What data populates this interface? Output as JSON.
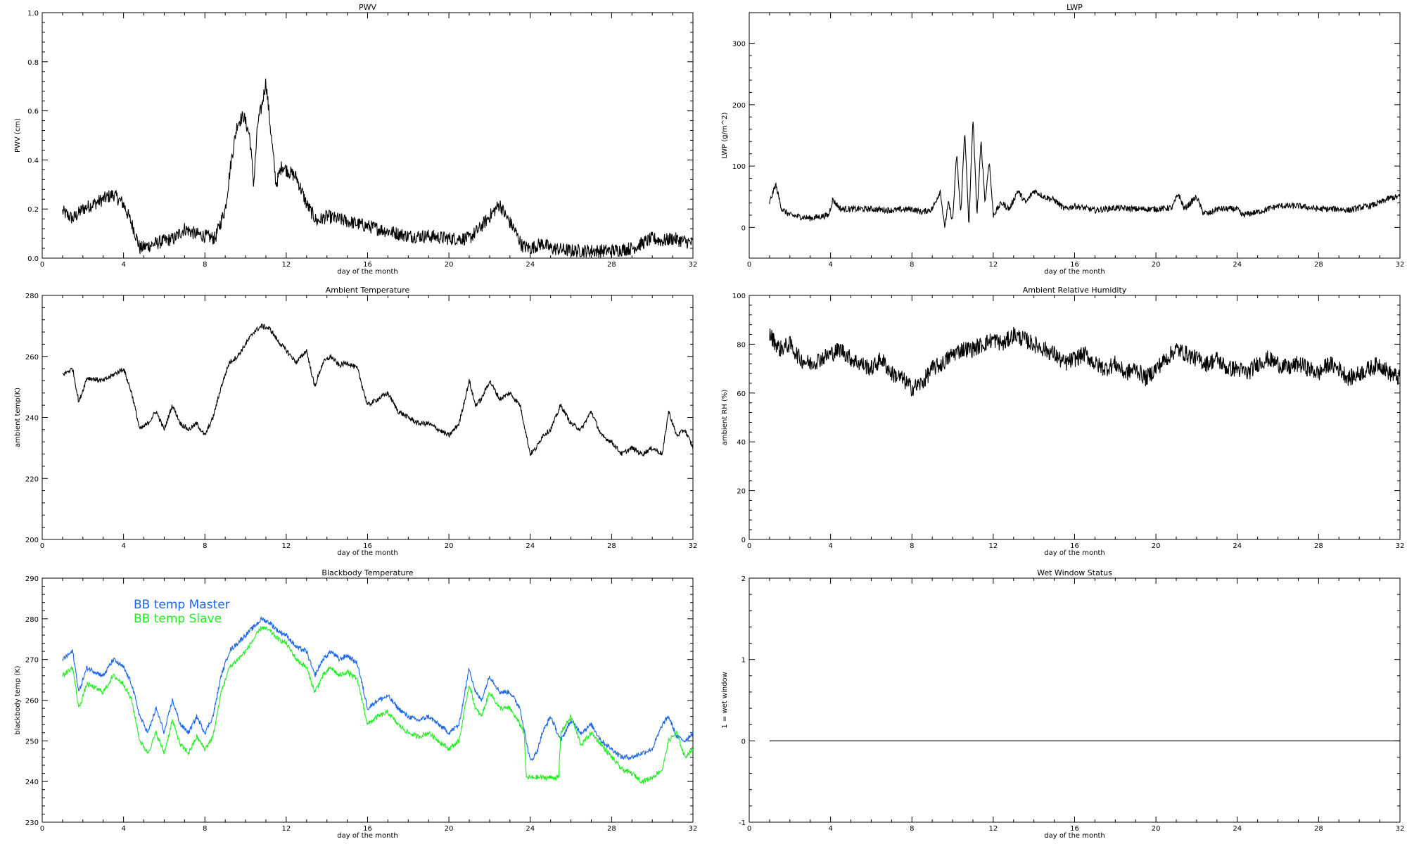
{
  "chart_data": [
    {
      "type": "line",
      "title": "PWV",
      "xlabel": "day of the month",
      "ylabel": "PWV (cm)",
      "xlim": [
        0,
        32
      ],
      "ylim": [
        0,
        1.0
      ],
      "xticks": [
        0,
        4,
        8,
        12,
        16,
        20,
        24,
        28,
        32
      ],
      "yticks": [
        0.0,
        0.2,
        0.4,
        0.6,
        0.8,
        1.0
      ],
      "ytick_labels": [
        "0.0",
        "0.2",
        "0.4",
        "0.6",
        "0.8",
        "1.0"
      ],
      "noise": 0.028,
      "series": [
        {
          "color": "#000000",
          "x": [
            1.0,
            1.5,
            2.0,
            2.5,
            3.0,
            3.5,
            4.0,
            4.5,
            4.8,
            5.2,
            5.6,
            6.0,
            6.5,
            7.0,
            7.5,
            8.0,
            8.5,
            9.0,
            9.3,
            9.6,
            9.9,
            10.2,
            10.4,
            10.6,
            10.8,
            11.0,
            11.2,
            11.5,
            11.8,
            12.0,
            12.5,
            13.0,
            13.5,
            14.0,
            14.5,
            15.0,
            16.0,
            17.0,
            18.0,
            19.0,
            20.0,
            21.0,
            21.5,
            22.0,
            22.5,
            22.8,
            23.2,
            23.6,
            24.0,
            24.3,
            24.6,
            25.0,
            26.0,
            27.0,
            28.0,
            29.0,
            29.5,
            30.0,
            30.5,
            31.0,
            31.5,
            32.0
          ],
          "values": [
            0.19,
            0.16,
            0.2,
            0.22,
            0.24,
            0.26,
            0.22,
            0.12,
            0.04,
            0.05,
            0.06,
            0.07,
            0.08,
            0.12,
            0.1,
            0.09,
            0.08,
            0.2,
            0.4,
            0.55,
            0.58,
            0.5,
            0.3,
            0.55,
            0.62,
            0.72,
            0.55,
            0.3,
            0.38,
            0.36,
            0.33,
            0.22,
            0.15,
            0.17,
            0.16,
            0.15,
            0.13,
            0.11,
            0.09,
            0.09,
            0.08,
            0.08,
            0.12,
            0.17,
            0.22,
            0.17,
            0.12,
            0.05,
            0.04,
            0.05,
            0.06,
            0.04,
            0.03,
            0.03,
            0.03,
            0.04,
            0.06,
            0.08,
            0.07,
            0.08,
            0.07,
            0.06
          ]
        }
      ]
    },
    {
      "type": "line",
      "title": "LWP",
      "xlabel": "day of the month",
      "ylabel": "LWP (g/m^2)",
      "xlim": [
        0,
        32
      ],
      "ylim": [
        -50,
        350
      ],
      "xticks": [
        0,
        4,
        8,
        12,
        16,
        20,
        24,
        28,
        32
      ],
      "yticks": [
        0,
        100,
        200,
        300
      ],
      "ytick_labels": [
        "0",
        "100",
        "200",
        "300"
      ],
      "noise": 5,
      "series": [
        {
          "color": "#000000",
          "x": [
            1.0,
            1.3,
            1.6,
            2.0,
            3.0,
            3.9,
            4.1,
            4.5,
            5.0,
            6.0,
            7.0,
            8.0,
            8.5,
            9.0,
            9.4,
            9.6,
            9.8,
            10.0,
            10.2,
            10.4,
            10.6,
            10.8,
            11.0,
            11.2,
            11.4,
            11.6,
            11.8,
            12.0,
            12.4,
            12.8,
            13.2,
            13.6,
            14.0,
            14.5,
            15.0,
            15.5,
            16.0,
            17.0,
            18.0,
            19.0,
            20.0,
            20.8,
            21.1,
            21.4,
            22.0,
            22.3,
            22.6,
            23.0,
            24.0,
            24.2,
            25.0,
            26.0,
            27.0,
            28.0,
            29.0,
            29.5,
            30.0,
            30.5,
            31.0,
            31.5,
            32.0
          ],
          "values": [
            40,
            70,
            30,
            20,
            15,
            20,
            45,
            30,
            30,
            30,
            28,
            30,
            25,
            30,
            60,
            0,
            40,
            10,
            120,
            20,
            160,
            0,
            180,
            20,
            140,
            40,
            110,
            20,
            40,
            30,
            60,
            40,
            60,
            50,
            45,
            30,
            35,
            28,
            32,
            30,
            30,
            32,
            55,
            30,
            50,
            25,
            22,
            30,
            30,
            20,
            25,
            35,
            35,
            30,
            30,
            28,
            32,
            35,
            40,
            48,
            50
          ]
        }
      ]
    },
    {
      "type": "line",
      "title": "Ambient Temperature",
      "xlabel": "day of the month",
      "ylabel": "ambient temp(K)",
      "xlim": [
        0,
        32
      ],
      "ylim": [
        200,
        280
      ],
      "xticks": [
        0,
        4,
        8,
        12,
        16,
        20,
        24,
        28,
        32
      ],
      "yticks": [
        200,
        220,
        240,
        260,
        280
      ],
      "ytick_labels": [
        "200",
        "220",
        "240",
        "260",
        "280"
      ],
      "noise": 0.8,
      "series": [
        {
          "color": "#000000",
          "x": [
            1.0,
            1.5,
            1.8,
            2.2,
            3.0,
            3.5,
            4.0,
            4.4,
            4.8,
            5.2,
            5.6,
            6.0,
            6.4,
            6.8,
            7.2,
            7.6,
            8.0,
            8.4,
            8.8,
            9.2,
            9.6,
            10.0,
            10.4,
            10.8,
            11.2,
            11.6,
            12.0,
            12.5,
            13.0,
            13.4,
            13.8,
            14.2,
            14.6,
            15.0,
            15.5,
            16.0,
            16.5,
            17.0,
            17.5,
            18.0,
            18.5,
            19.0,
            19.5,
            20.0,
            20.5,
            21.0,
            21.3,
            21.6,
            22.0,
            22.5,
            23.0,
            23.5,
            24.0,
            24.3,
            24.6,
            25.0,
            25.5,
            26.0,
            26.5,
            27.0,
            27.5,
            28.0,
            28.5,
            29.0,
            29.5,
            30.0,
            30.5,
            30.8,
            31.2,
            31.6,
            32.0
          ],
          "values": [
            254,
            256,
            245,
            253,
            252,
            254,
            256,
            248,
            236,
            238,
            242,
            236,
            244,
            238,
            236,
            238,
            234,
            240,
            250,
            258,
            260,
            264,
            268,
            270,
            269,
            265,
            262,
            258,
            262,
            250,
            258,
            260,
            257,
            258,
            256,
            244,
            246,
            248,
            242,
            240,
            238,
            238,
            236,
            234,
            238,
            252,
            244,
            246,
            252,
            246,
            248,
            244,
            228,
            230,
            234,
            236,
            244,
            238,
            236,
            242,
            234,
            232,
            228,
            230,
            228,
            230,
            228,
            242,
            234,
            236,
            230
          ]
        }
      ]
    },
    {
      "type": "line",
      "title": "Ambient Relative Humidity",
      "xlabel": "day of the month",
      "ylabel": "ambient RH (%)",
      "xlim": [
        0,
        32
      ],
      "ylim": [
        0,
        100
      ],
      "xticks": [
        0,
        4,
        8,
        12,
        16,
        20,
        24,
        28,
        32
      ],
      "yticks": [
        0,
        20,
        40,
        60,
        80,
        100
      ],
      "ytick_labels": [
        "0",
        "20",
        "40",
        "60",
        "80",
        "100"
      ],
      "noise": 3.5,
      "series": [
        {
          "color": "#000000",
          "x": [
            1.0,
            1.5,
            2.0,
            2.5,
            3.0,
            3.5,
            4.0,
            4.5,
            5.0,
            5.5,
            6.0,
            6.5,
            7.0,
            7.5,
            8.0,
            8.5,
            9.0,
            9.5,
            10.0,
            10.5,
            11.0,
            11.5,
            12.0,
            12.5,
            13.0,
            13.5,
            14.0,
            14.5,
            15.0,
            15.5,
            16.0,
            16.5,
            17.0,
            17.5,
            18.0,
            18.5,
            19.0,
            19.5,
            20.0,
            20.5,
            21.0,
            21.5,
            22.0,
            22.5,
            23.0,
            23.5,
            24.0,
            24.5,
            25.0,
            25.5,
            26.0,
            26.5,
            27.0,
            27.5,
            28.0,
            28.5,
            29.0,
            29.5,
            30.0,
            30.5,
            31.0,
            31.5,
            32.0
          ],
          "values": [
            84,
            78,
            80,
            74,
            72,
            74,
            76,
            78,
            74,
            72,
            70,
            74,
            68,
            66,
            62,
            64,
            70,
            72,
            76,
            78,
            78,
            80,
            82,
            80,
            84,
            82,
            80,
            78,
            76,
            72,
            74,
            76,
            72,
            70,
            72,
            68,
            70,
            66,
            70,
            74,
            78,
            76,
            74,
            72,
            74,
            70,
            70,
            68,
            72,
            74,
            72,
            70,
            72,
            70,
            68,
            72,
            70,
            66,
            68,
            70,
            72,
            68,
            66
          ]
        }
      ]
    },
    {
      "type": "line",
      "title": "Blackbody Temperature",
      "xlabel": "day of the month",
      "ylabel": "blackbody temp (K)",
      "xlim": [
        0,
        32
      ],
      "ylim": [
        230,
        290
      ],
      "xticks": [
        0,
        4,
        8,
        12,
        16,
        20,
        24,
        28,
        32
      ],
      "yticks": [
        230,
        240,
        250,
        260,
        270,
        280,
        290
      ],
      "ytick_labels": [
        "230",
        "240",
        "250",
        "260",
        "270",
        "280",
        "290"
      ],
      "noise": 0.6,
      "series": [
        {
          "name": "BB temp Master",
          "color": "#1a66e6",
          "x": [
            1.0,
            1.5,
            1.8,
            2.2,
            3.0,
            3.5,
            4.0,
            4.4,
            4.8,
            5.2,
            5.6,
            6.0,
            6.4,
            6.8,
            7.2,
            7.6,
            8.0,
            8.4,
            8.8,
            9.2,
            9.6,
            10.0,
            10.4,
            10.8,
            11.2,
            11.6,
            12.0,
            12.5,
            13.0,
            13.4,
            13.8,
            14.2,
            14.6,
            15.0,
            15.5,
            16.0,
            16.5,
            17.0,
            17.5,
            18.0,
            18.5,
            19.0,
            19.5,
            20.0,
            20.5,
            21.0,
            21.3,
            21.6,
            22.0,
            22.5,
            23.0,
            23.5,
            23.8,
            24.0,
            24.3,
            24.6,
            25.0,
            25.5,
            26.0,
            26.5,
            27.0,
            27.5,
            28.0,
            28.5,
            29.0,
            29.5,
            30.0,
            30.5,
            30.8,
            31.2,
            31.6,
            32.0
          ],
          "values": [
            270,
            272,
            262,
            268,
            266,
            270,
            268,
            264,
            256,
            252,
            258,
            252,
            260,
            254,
            252,
            256,
            252,
            256,
            266,
            272,
            274,
            276,
            278,
            280,
            279,
            277,
            276,
            273,
            272,
            266,
            270,
            272,
            270,
            271,
            269,
            258,
            260,
            261,
            258,
            256,
            255,
            256,
            254,
            252,
            254,
            268,
            262,
            260,
            266,
            262,
            262,
            258,
            250,
            245,
            247,
            252,
            256,
            250,
            255,
            252,
            254,
            250,
            248,
            246,
            246,
            247,
            248,
            254,
            256,
            251,
            250,
            252
          ]
        },
        {
          "name": "BB temp Slave",
          "color": "#22ee22",
          "x": [
            1.0,
            1.5,
            1.8,
            2.2,
            3.0,
            3.5,
            4.0,
            4.4,
            4.8,
            5.2,
            5.6,
            6.0,
            6.4,
            6.8,
            7.2,
            7.6,
            8.0,
            8.4,
            8.8,
            9.2,
            9.6,
            10.0,
            10.4,
            10.8,
            11.2,
            11.6,
            12.0,
            12.5,
            13.0,
            13.4,
            13.8,
            14.2,
            14.6,
            15.0,
            15.5,
            16.0,
            16.5,
            17.0,
            17.5,
            18.0,
            18.5,
            19.0,
            19.5,
            20.0,
            20.5,
            21.0,
            21.3,
            21.6,
            22.0,
            22.5,
            23.0,
            23.5,
            23.7,
            23.8,
            25.4,
            25.5,
            26.0,
            26.5,
            27.0,
            27.5,
            28.0,
            28.5,
            29.0,
            29.5,
            30.0,
            30.5,
            30.8,
            31.2,
            31.6,
            32.0
          ],
          "values": [
            266,
            268,
            258,
            264,
            262,
            266,
            264,
            260,
            250,
            247,
            252,
            247,
            255,
            249,
            247,
            251,
            248,
            251,
            262,
            268,
            270,
            272,
            275,
            278,
            277,
            275,
            274,
            270,
            268,
            262,
            266,
            268,
            266,
            267,
            265,
            254,
            256,
            257,
            254,
            252,
            251,
            252,
            250,
            248,
            250,
            264,
            258,
            256,
            262,
            258,
            258,
            254,
            252,
            241,
            241,
            252,
            256,
            249,
            252,
            249,
            246,
            243,
            242,
            240,
            241,
            243,
            250,
            252,
            246,
            248
          ]
        }
      ]
    },
    {
      "type": "line",
      "title": "Wet Window Status",
      "xlabel": "day of the month",
      "ylabel": "1 = wet window",
      "xlim": [
        0,
        32
      ],
      "ylim": [
        -1,
        2
      ],
      "xticks": [
        0,
        4,
        8,
        12,
        16,
        20,
        24,
        28,
        32
      ],
      "yticks": [
        -1,
        0,
        1,
        2
      ],
      "ytick_labels": [
        "-1",
        "0",
        "1",
        "2"
      ],
      "noise": 0,
      "series": [
        {
          "color": "#000000",
          "x": [
            1.0,
            32.0
          ],
          "values": [
            0,
            0
          ]
        }
      ]
    }
  ]
}
